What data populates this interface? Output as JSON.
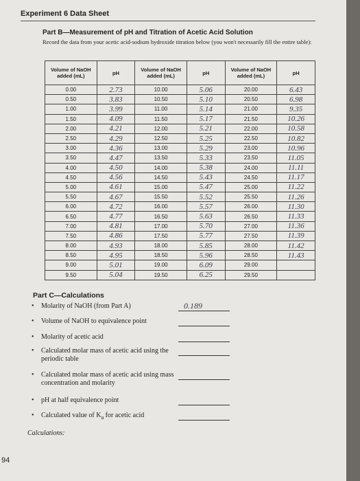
{
  "header": {
    "title": "Experiment 6 Data Sheet"
  },
  "part_b": {
    "title": "Part B—Measurement of pH and Titration of Acetic Acid Solution",
    "instruction": "Record the data from your acetic acid-sodium hydroxide titration below (you won't necessarily fill the entire table):"
  },
  "table": {
    "headers": [
      "Volume of NaOH added (mL)",
      "pH",
      "Volume of NaOH added (mL)",
      "pH",
      "Volume of NaOH added (mL)",
      "pH"
    ],
    "rows": [
      [
        "0.00",
        "2.73",
        "10.00",
        "5.06",
        "20.00",
        "6.43"
      ],
      [
        "0.50",
        "3.83",
        "10.50",
        "5.10",
        "20.50",
        "6.98"
      ],
      [
        "1.00",
        "3.99",
        "11.00",
        "5.14",
        "21.00",
        "9.35"
      ],
      [
        "1.50",
        "4.09",
        "11.50",
        "5.17",
        "21.50",
        "10.26"
      ],
      [
        "2.00",
        "4.21",
        "12.00",
        "5.21",
        "22.00",
        "10.58"
      ],
      [
        "2.50",
        "4.29",
        "12.50",
        "5.25",
        "22.50",
        "10.82"
      ],
      [
        "3.00",
        "4.36",
        "13.00",
        "5.29",
        "23.00",
        "10.96"
      ],
      [
        "3.50",
        "4.47",
        "13.50",
        "5.33",
        "23.50",
        "11.05"
      ],
      [
        "4.00",
        "4.50",
        "14.00",
        "5.38",
        "24.00",
        "11.11"
      ],
      [
        "4.50",
        "4.56",
        "14.50",
        "5.43",
        "24.50",
        "11.17"
      ],
      [
        "5.00",
        "4.61",
        "15.00",
        "5.47",
        "25.00",
        "11.22"
      ],
      [
        "5.50",
        "4.67",
        "15.50",
        "5.52",
        "25.50",
        "11.26"
      ],
      [
        "6.00",
        "4.72",
        "16.00",
        "5.57",
        "26.00",
        "11.30"
      ],
      [
        "6.50",
        "4.77",
        "16.50",
        "5.63",
        "26.50",
        "11.33"
      ],
      [
        "7.00",
        "4.81",
        "17.00",
        "5.70",
        "27.00",
        "11.36"
      ],
      [
        "7.50",
        "4.86",
        "17.50",
        "5.77",
        "27.50",
        "11.39"
      ],
      [
        "8.00",
        "4.93",
        "18.00",
        "5.85",
        "28.00",
        "11.42"
      ],
      [
        "8.50",
        "4.95",
        "18.50",
        "5.96",
        "28.50",
        "11.43"
      ],
      [
        "9.00",
        "5.01",
        "19.00",
        "6.09",
        "29.00",
        null
      ],
      [
        "9.50",
        "5.04",
        "19.50",
        "6.25",
        "29.50",
        null
      ]
    ]
  },
  "part_c": {
    "title": "Part C—Calculations",
    "items": [
      {
        "label": "Molarity of NaOH (from Part A)",
        "answer": "0.189"
      },
      {
        "label": "Volume of NaOH to equivalence point"
      },
      {
        "label": "Molarity of acetic acid"
      },
      {
        "label": "Calculated molar mass of acetic acid using the periodic table"
      },
      {
        "label": "Calculated molar mass of acetic acid using mass concentration and molarity"
      },
      {
        "label": "pH at half equivalence point"
      },
      {
        "label": "Calculated value of K",
        "subscript": "a",
        "label_after": " for acetic acid"
      }
    ],
    "calculations_label": "Calculations:"
  },
  "page_number": "94"
}
